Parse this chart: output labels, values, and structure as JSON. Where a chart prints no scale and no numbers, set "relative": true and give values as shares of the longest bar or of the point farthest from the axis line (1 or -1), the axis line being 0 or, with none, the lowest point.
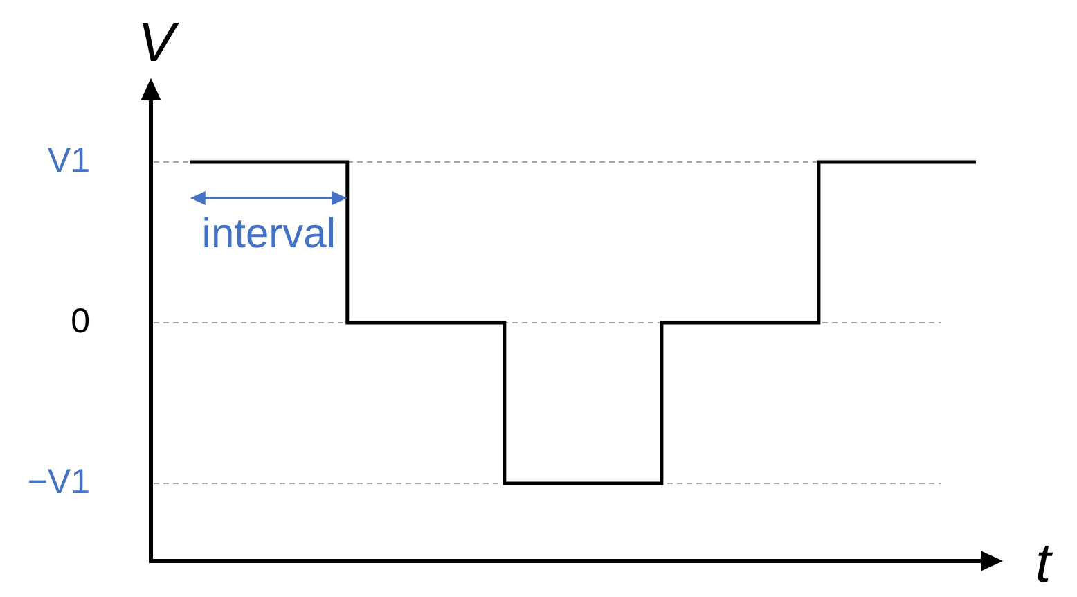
{
  "chart_data": {
    "type": "step",
    "relative": true,
    "xlabel": "t",
    "ylabel": "V",
    "categories": [
      null,
      null,
      null,
      null,
      null,
      null
    ],
    "values": [
      1,
      0,
      -1,
      0,
      1,
      1
    ],
    "color": "#000000",
    "ref_lines": [
      {
        "axis": "y",
        "value": 1,
        "label": "V1",
        "color": "#a6a6a6",
        "line_style": "dashed"
      },
      {
        "axis": "y",
        "value": 0,
        "label": "0",
        "color": "#a6a6a6",
        "line_style": "dashed"
      },
      {
        "axis": "y",
        "value": -1,
        "label": "−V1",
        "color": "#a6a6a6",
        "line_style": "dashed"
      }
    ],
    "annotations": [
      "interval"
    ]
  }
}
